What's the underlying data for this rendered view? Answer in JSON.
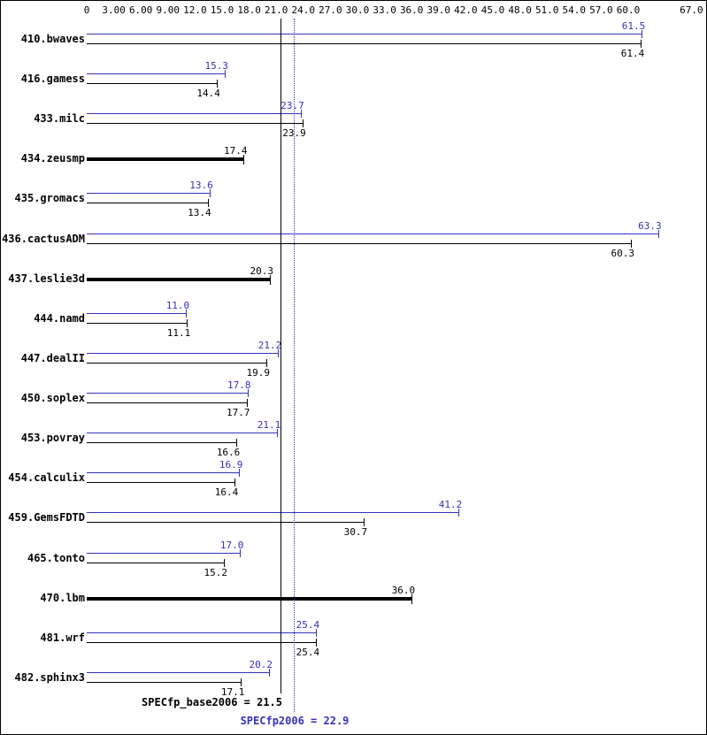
{
  "colors": {
    "peak": "#3333bb",
    "base": "#000000",
    "background": "#ffffff"
  },
  "footer": {
    "base_label": "SPECfp_base2006 = 21.5",
    "peak_label": "SPECfp2006 = 22.9"
  },
  "chart_data": {
    "type": "bar",
    "orientation": "horizontal",
    "title": "",
    "xlabel": "",
    "ylabel": "",
    "xlim": [
      0,
      67
    ],
    "grid": false,
    "legend_position": "none",
    "x_ticks": [
      "0",
      "3.00",
      "6.00",
      "9.00",
      "12.0",
      "15.0",
      "18.0",
      "21.0",
      "24.0",
      "27.0",
      "30.0",
      "33.0",
      "36.0",
      "39.0",
      "42.0",
      "45.0",
      "48.0",
      "51.0",
      "54.0",
      "57.0",
      "60.0",
      "67.0"
    ],
    "categories": [
      "410.bwaves",
      "416.gamess",
      "433.milc",
      "434.zeusmp",
      "435.gromacs",
      "436.cactusADM",
      "437.leslie3d",
      "444.namd",
      "447.dealII",
      "450.soplex",
      "453.povray",
      "454.calculix",
      "459.GemsFDTD",
      "465.tonto",
      "470.lbm",
      "481.wrf",
      "482.sphinx3"
    ],
    "series": [
      {
        "name": "SPECfp2006 (peak)",
        "color": "#3333bb",
        "values": [
          61.5,
          15.3,
          23.7,
          null,
          13.6,
          63.3,
          null,
          11.0,
          21.2,
          17.8,
          21.1,
          16.9,
          41.2,
          17.0,
          null,
          25.4,
          20.2
        ]
      },
      {
        "name": "SPECfp_base2006 (base)",
        "color": "#000000",
        "values": [
          61.4,
          14.4,
          23.9,
          17.4,
          13.4,
          60.3,
          20.3,
          11.1,
          19.9,
          17.7,
          16.6,
          16.4,
          30.7,
          15.2,
          36.0,
          25.4,
          17.1
        ]
      }
    ],
    "benchmarks": [
      {
        "name": "410.bwaves",
        "peak": "61.5",
        "base": "61.4",
        "single": false
      },
      {
        "name": "416.gamess",
        "peak": "15.3",
        "base": "14.4",
        "single": false
      },
      {
        "name": "433.milc",
        "peak": "23.7",
        "base": "23.9",
        "single": false
      },
      {
        "name": "434.zeusmp",
        "peak": null,
        "base": "17.4",
        "single": true
      },
      {
        "name": "435.gromacs",
        "peak": "13.6",
        "base": "13.4",
        "single": false
      },
      {
        "name": "436.cactusADM",
        "peak": "63.3",
        "base": "60.3",
        "single": false
      },
      {
        "name": "437.leslie3d",
        "peak": null,
        "base": "20.3",
        "single": true
      },
      {
        "name": "444.namd",
        "peak": "11.0",
        "base": "11.1",
        "single": false
      },
      {
        "name": "447.dealII",
        "peak": "21.2",
        "base": "19.9",
        "single": false
      },
      {
        "name": "450.soplex",
        "peak": "17.8",
        "base": "17.7",
        "single": false
      },
      {
        "name": "453.povray",
        "peak": "21.1",
        "base": "16.6",
        "single": false
      },
      {
        "name": "454.calculix",
        "peak": "16.9",
        "base": "16.4",
        "single": false
      },
      {
        "name": "459.GemsFDTD",
        "peak": "41.2",
        "base": "30.7",
        "single": false
      },
      {
        "name": "465.tonto",
        "peak": "17.0",
        "base": "15.2",
        "single": false
      },
      {
        "name": "470.lbm",
        "peak": null,
        "base": "36.0",
        "single": true
      },
      {
        "name": "481.wrf",
        "peak": "25.4",
        "base": "25.4",
        "single": false
      },
      {
        "name": "482.sphinx3",
        "peak": "20.2",
        "base": "17.1",
        "single": false
      }
    ],
    "reference_lines": [
      {
        "label": "SPECfp_base2006 = 21.5",
        "value": 21.5,
        "style": "solid",
        "color": "#000000"
      },
      {
        "label": "SPECfp2006 = 22.9",
        "value": 22.9,
        "style": "dotted",
        "color": "#3333bb"
      }
    ]
  }
}
